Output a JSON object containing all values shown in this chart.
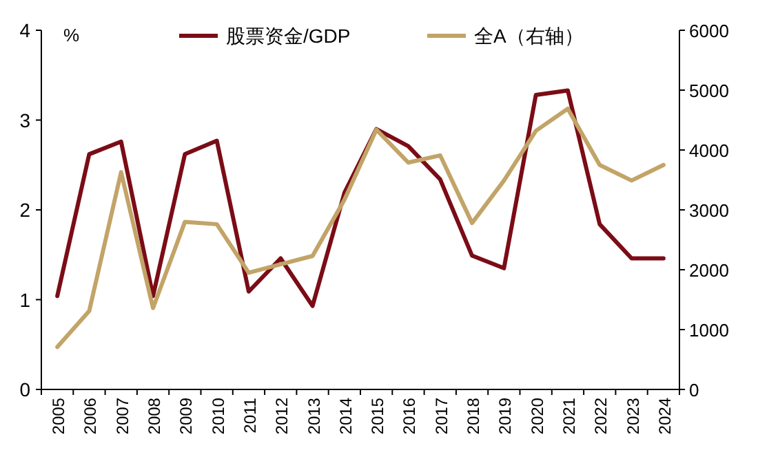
{
  "chart_data": {
    "type": "line",
    "ylabel": "%",
    "categories": [
      "2005",
      "2006",
      "2007",
      "2008",
      "2009",
      "2010",
      "2011",
      "2012",
      "2013",
      "2014",
      "2015",
      "2016",
      "2017",
      "2018",
      "2019",
      "2020",
      "2021",
      "2022",
      "2023",
      "2024"
    ],
    "series": [
      {
        "name": "股票资金/GDP",
        "color": "#7b0c16",
        "values": [
          1.04,
          2.62,
          2.76,
          1.04,
          2.62,
          2.77,
          1.09,
          1.46,
          0.93,
          2.19,
          2.9,
          2.71,
          2.34,
          1.49,
          1.35,
          3.28,
          3.33,
          1.84,
          1.46,
          1.46
        ]
      },
      {
        "name": "全A（右轴）",
        "color": "#c2a468",
        "axis": "y2",
        "values": [
          710,
          1310,
          3630,
          1360,
          2800,
          2760,
          1950,
          2090,
          2230,
          3170,
          4340,
          3790,
          3910,
          2780,
          3490,
          4320,
          4690,
          3750,
          3490,
          3750
        ]
      }
    ],
    "ylim": [
      0,
      4
    ],
    "yticks": [
      0,
      1,
      2,
      3,
      4
    ],
    "y2lim": [
      0,
      6000
    ],
    "y2ticks": [
      0,
      1000,
      2000,
      3000,
      4000,
      5000,
      6000
    ],
    "legend": "top",
    "grid": false,
    "marker": "none",
    "line_style": "solid"
  }
}
